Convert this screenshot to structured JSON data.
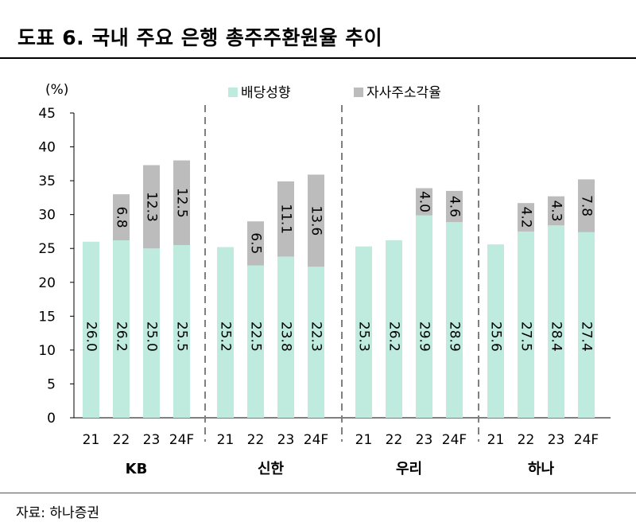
{
  "header": {
    "title": "도표 6. 국내 주요 은행 총주주환원율 추이"
  },
  "footer": {
    "source": "자료: 하나증권"
  },
  "chart_data": {
    "type": "bar",
    "stacked": true,
    "y_unit_label": "(%)",
    "ylim": [
      0,
      45
    ],
    "yticks": [
      0,
      5,
      10,
      15,
      20,
      25,
      30,
      35,
      40,
      45
    ],
    "grid": false,
    "legend_position": "top",
    "series": [
      {
        "name": "배당성향",
        "color": "#bfeade"
      },
      {
        "name": "자사주소각율",
        "color": "#bcbcbc"
      }
    ],
    "groups": [
      {
        "name": "KB",
        "categories": [
          "21",
          "22",
          "23",
          "24F"
        ],
        "values": [
          [
            26.0,
            0
          ],
          [
            26.2,
            6.8
          ],
          [
            25.0,
            12.3
          ],
          [
            25.5,
            12.5
          ]
        ],
        "labels": [
          [
            "26.0",
            ""
          ],
          [
            "26.2",
            "6.8"
          ],
          [
            "25.0",
            "12.3"
          ],
          [
            "25.5",
            "12.5"
          ]
        ]
      },
      {
        "name": "신한",
        "categories": [
          "21",
          "22",
          "23",
          "24F"
        ],
        "values": [
          [
            25.2,
            0
          ],
          [
            22.5,
            6.5
          ],
          [
            23.8,
            11.1
          ],
          [
            22.3,
            13.6
          ]
        ],
        "labels": [
          [
            "25.2",
            ""
          ],
          [
            "22.5",
            "6.5"
          ],
          [
            "23.8",
            "11.1"
          ],
          [
            "22.3",
            "13.6"
          ]
        ]
      },
      {
        "name": "우리",
        "categories": [
          "21",
          "22",
          "23",
          "24F"
        ],
        "values": [
          [
            25.3,
            0
          ],
          [
            26.2,
            0
          ],
          [
            29.9,
            4.0
          ],
          [
            28.9,
            4.6
          ]
        ],
        "labels": [
          [
            "25.3",
            ""
          ],
          [
            "26.2",
            ""
          ],
          [
            "29.9",
            "4.0"
          ],
          [
            "28.9",
            "4.6"
          ]
        ]
      },
      {
        "name": "하나",
        "categories": [
          "21",
          "22",
          "23",
          "24F"
        ],
        "values": [
          [
            25.6,
            0
          ],
          [
            27.5,
            4.2
          ],
          [
            28.4,
            4.3
          ],
          [
            27.4,
            7.8
          ]
        ],
        "labels": [
          [
            "25.6",
            ""
          ],
          [
            "27.5",
            "4.2"
          ],
          [
            "28.4",
            "4.3"
          ],
          [
            "27.4",
            "7.8"
          ]
        ]
      }
    ]
  }
}
